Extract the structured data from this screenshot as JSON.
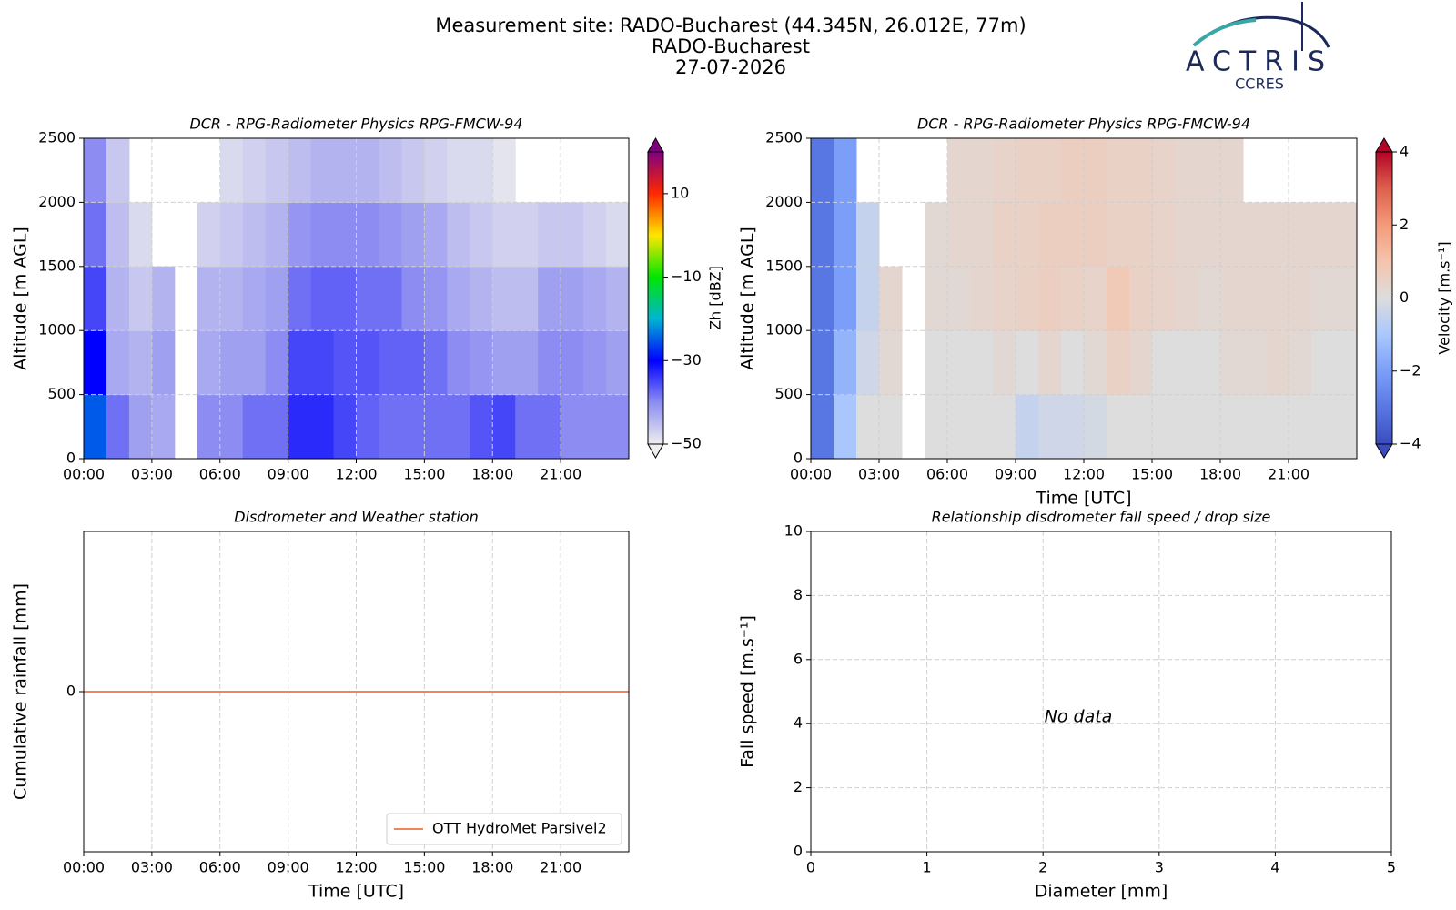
{
  "header": {
    "title": [
      "Measurement site: RADO-Bucharest (44.345N, 26.012E, 77m)",
      "RADO-Bucharest",
      "27-07-2026"
    ],
    "logo": "ACTRIS",
    "logo_subtitle": "CCRES"
  },
  "chart_data": [
    {
      "type": "heatmap",
      "title": "DCR - RPG-Radiometer Physics RPG-FMCW-94",
      "ylabel": "Altitude [m AGL]",
      "xlim": [
        0,
        24
      ],
      "xticks": [
        {
          "value": 0,
          "label": "00:00"
        },
        {
          "value": 3,
          "label": "03:00"
        },
        {
          "value": 6,
          "label": "06:00"
        },
        {
          "value": 9,
          "label": "09:00"
        },
        {
          "value": 12,
          "label": "12:00"
        },
        {
          "value": 15,
          "label": "15:00"
        },
        {
          "value": 18,
          "label": "18:00"
        },
        {
          "value": 21,
          "label": "21:00"
        }
      ],
      "ylim": [
        0,
        2500
      ],
      "yticks": [
        0,
        500,
        1000,
        1500,
        2000,
        2500
      ],
      "grid": true,
      "x_edges": [
        0,
        1,
        2,
        3,
        4,
        5,
        6,
        7,
        8,
        9,
        10,
        11,
        12,
        13,
        14,
        15,
        16,
        17,
        18,
        19,
        20,
        21,
        22,
        23,
        24
      ],
      "y_edges": [
        0,
        500,
        1000,
        1500,
        2000,
        2500
      ],
      "z": [
        [
          -25,
          -38,
          -42,
          -43,
          null,
          -40,
          -40,
          -38,
          -38,
          -33,
          -33,
          -35,
          -37,
          -38,
          -38,
          -38,
          -38,
          -36,
          -35,
          -38,
          -38,
          -40,
          -40,
          -40
        ],
        [
          -30,
          -43,
          -44,
          -42,
          null,
          -43,
          -42,
          -42,
          -40,
          -35,
          -35,
          -36,
          -36,
          -37,
          -37,
          -38,
          -40,
          -41,
          -42,
          -42,
          -40,
          -40,
          -41,
          -42
        ],
        [
          -35,
          -44,
          -46,
          -44,
          null,
          -44,
          -44,
          -43,
          -42,
          -38,
          -37,
          -37,
          -38,
          -38,
          -40,
          -41,
          -43,
          -44,
          -45,
          -45,
          -42,
          -42,
          -43,
          -44
        ],
        [
          -38,
          -45,
          -48,
          null,
          null,
          -47,
          -46,
          -45,
          -44,
          -41,
          -40,
          -40,
          -40,
          -41,
          -42,
          -43,
          -45,
          -46,
          -47,
          -47,
          -46,
          -46,
          -47,
          -48
        ],
        [
          -40,
          -46,
          null,
          null,
          null,
          null,
          -48,
          -47,
          -46,
          -45,
          -44,
          -44,
          -44,
          -45,
          -46,
          -47,
          -48,
          -48,
          -49,
          null,
          null,
          null,
          null,
          null
        ]
      ],
      "colorbar": {
        "label": "Zh [dBZ]",
        "zlim": [
          -50,
          20
        ],
        "ticks": [
          {
            "value": -50,
            "label": "−50"
          },
          {
            "value": -30,
            "label": "−30"
          },
          {
            "value": -10,
            "label": "−10"
          },
          10
        ],
        "extend": "both",
        "colormap": [
          "#eeeeee",
          "#8c8cf2",
          "#0000ff",
          "#00b4d2",
          "#00e600",
          "#ffe600",
          "#ff2800",
          "#800080"
        ]
      }
    },
    {
      "type": "heatmap",
      "title": "DCR - RPG-Radiometer Physics RPG-FMCW-94",
      "ylabel": "Altitude [m AGL]",
      "xlabel": "Time [UTC]",
      "xlim": [
        0,
        24
      ],
      "xticks": [
        {
          "value": 0,
          "label": "00:00"
        },
        {
          "value": 3,
          "label": "03:00"
        },
        {
          "value": 6,
          "label": "06:00"
        },
        {
          "value": 9,
          "label": "09:00"
        },
        {
          "value": 12,
          "label": "12:00"
        },
        {
          "value": 15,
          "label": "15:00"
        },
        {
          "value": 18,
          "label": "18:00"
        },
        {
          "value": 21,
          "label": "21:00"
        }
      ],
      "ylim": [
        0,
        2500
      ],
      "yticks": [
        0,
        500,
        1000,
        1500,
        2000,
        2500
      ],
      "grid": true,
      "x_edges": [
        0,
        1,
        2,
        3,
        4,
        5,
        6,
        7,
        8,
        9,
        10,
        11,
        12,
        13,
        14,
        15,
        16,
        17,
        18,
        19,
        20,
        21,
        22,
        23,
        24
      ],
      "y_edges": [
        0,
        500,
        1000,
        1500,
        2000,
        2500
      ],
      "z": [
        [
          -3,
          -1,
          0,
          0,
          null,
          0,
          0,
          0,
          0,
          -0.5,
          -0.3,
          -0.3,
          -0.2,
          0,
          0,
          0,
          0,
          0,
          0,
          0,
          0,
          0,
          0,
          0
        ],
        [
          -3,
          -1.5,
          -0.3,
          0.2,
          null,
          0,
          0,
          0,
          0.2,
          0,
          0.3,
          0,
          0.2,
          0.5,
          0.3,
          0,
          0,
          0,
          0.2,
          0.2,
          0.3,
          0.2,
          0,
          0
        ],
        [
          -3,
          -2,
          -0.5,
          0.3,
          null,
          0.2,
          0.2,
          0.3,
          0.4,
          0.5,
          0.6,
          0.5,
          0.4,
          0.8,
          0.5,
          0.4,
          0.3,
          0.2,
          0.3,
          0.3,
          0.3,
          0.3,
          0.2,
          0.2
        ],
        [
          -3,
          -2,
          -0.5,
          null,
          null,
          0.2,
          0.3,
          0.3,
          0.5,
          0.5,
          0.6,
          0.6,
          0.6,
          0.5,
          0.5,
          0.4,
          0.3,
          0.3,
          0.3,
          0.3,
          0.3,
          0.3,
          0.3,
          0.3
        ],
        [
          -3,
          -2,
          null,
          null,
          null,
          null,
          0.3,
          0.3,
          0.4,
          0.5,
          0.5,
          0.6,
          0.6,
          0.5,
          0.5,
          0.4,
          0.3,
          0.3,
          0.3,
          null,
          null,
          null,
          null,
          null
        ]
      ],
      "colorbar": {
        "label": "Velocity [m.s⁻¹]",
        "zlim": [
          -4,
          4
        ],
        "ticks": [
          {
            "value": -4,
            "label": "−4"
          },
          {
            "value": -2,
            "label": "−2"
          },
          0,
          2,
          4
        ],
        "extend": "both",
        "colormap": [
          "#3b4cc0",
          "#5977e3",
          "#7b9ff9",
          "#aac7fd",
          "#dddddd",
          "#f5c4ad",
          "#f49a7b",
          "#de604d",
          "#b40426"
        ]
      }
    },
    {
      "type": "line",
      "title": "Disdrometer and Weather station",
      "ylabel": "Cumulative rainfall [mm]",
      "xlabel": "Time [UTC]",
      "xlim": [
        0,
        24
      ],
      "xticks": [
        {
          "value": 0,
          "label": "00:00"
        },
        {
          "value": 3,
          "label": "03:00"
        },
        {
          "value": 6,
          "label": "06:00"
        },
        {
          "value": 9,
          "label": "09:00"
        },
        {
          "value": 12,
          "label": "12:00"
        },
        {
          "value": 15,
          "label": "15:00"
        },
        {
          "value": 18,
          "label": "18:00"
        },
        {
          "value": 21,
          "label": "21:00"
        }
      ],
      "ylim": [
        -1,
        1
      ],
      "yticks": [
        0
      ],
      "grid": true,
      "legend": "lower right",
      "x": [
        0,
        24
      ],
      "series": [
        {
          "name": "OTT HydroMet Parsivel2",
          "color": "#f0845a",
          "values": [
            0,
            0
          ]
        }
      ]
    },
    {
      "type": "scatter",
      "title": "Relationship disdrometer fall speed / drop size",
      "ylabel": "Fall speed [m.s⁻¹]",
      "xlabel": "Diameter [mm]",
      "xlim": [
        0,
        5
      ],
      "xticks": [
        0,
        1,
        2,
        3,
        4,
        5
      ],
      "ylim": [
        0,
        10
      ],
      "yticks": [
        0,
        2,
        4,
        6,
        8,
        10
      ],
      "grid": true,
      "annotation": "No data"
    }
  ]
}
